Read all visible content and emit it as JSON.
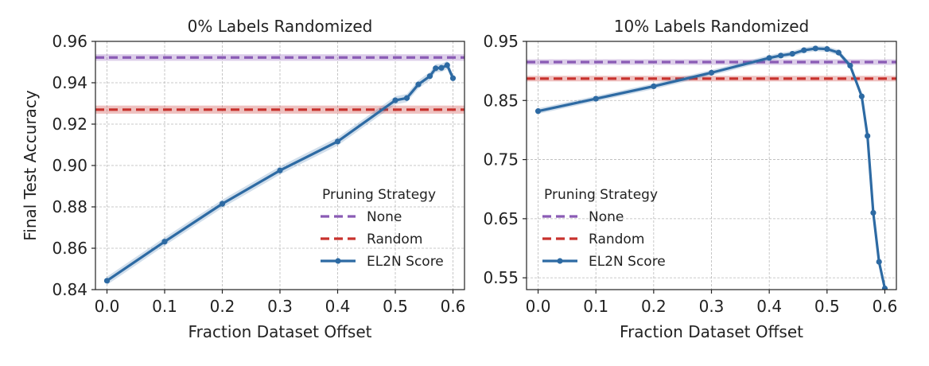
{
  "chart_data": [
    {
      "type": "line",
      "title": "0% Labels Randomized",
      "xlabel": "Fraction Dataset Offset",
      "ylabel": "Final Test Accuracy",
      "xlim": [
        -0.02,
        0.62
      ],
      "ylim": [
        0.84,
        0.96
      ],
      "xticks": [
        0.0,
        0.1,
        0.2,
        0.3,
        0.4,
        0.5,
        0.6
      ],
      "xtick_labels": [
        "0.0",
        "0.1",
        "0.2",
        "0.3",
        "0.4",
        "0.5",
        "0.6"
      ],
      "yticks": [
        0.84,
        0.86,
        0.88,
        0.9,
        0.92,
        0.94,
        0.96
      ],
      "ytick_labels": [
        "0.84",
        "0.86",
        "0.88",
        "0.90",
        "0.92",
        "0.94",
        "0.96"
      ],
      "grid": true,
      "legend": {
        "title": "Pruning Strategy",
        "position": "lower-right",
        "entries": [
          "None",
          "Random",
          "EL2N Score"
        ]
      },
      "hlines": [
        {
          "name": "None",
          "y": 0.9522,
          "band": 0.0008,
          "color": "#8a5bb5",
          "style": "dashed"
        },
        {
          "name": "Random",
          "y": 0.927,
          "band": 0.0012,
          "color": "#c8322d",
          "style": "dashed"
        }
      ],
      "series": [
        {
          "name": "EL2N Score",
          "color": "#2d6aa3",
          "band": 0.0012,
          "x": [
            0.0,
            0.1,
            0.2,
            0.3,
            0.4,
            0.5,
            0.52,
            0.54,
            0.56,
            0.57,
            0.58,
            0.59,
            0.6
          ],
          "y": [
            0.8443,
            0.8632,
            0.8815,
            0.8976,
            0.9116,
            0.9315,
            0.9326,
            0.9392,
            0.9432,
            0.947,
            0.9472,
            0.9485,
            0.9422
          ]
        }
      ]
    },
    {
      "type": "line",
      "title": "10% Labels Randomized",
      "xlabel": "Fraction Dataset Offset",
      "ylabel": "",
      "xlim": [
        -0.02,
        0.62
      ],
      "ylim": [
        0.53,
        0.95
      ],
      "xticks": [
        0.0,
        0.1,
        0.2,
        0.3,
        0.4,
        0.5,
        0.6
      ],
      "xtick_labels": [
        "0.0",
        "0.1",
        "0.2",
        "0.3",
        "0.4",
        "0.5",
        "0.6"
      ],
      "yticks": [
        0.55,
        0.65,
        0.75,
        0.85,
        0.95
      ],
      "ytick_labels": [
        "0.55",
        "0.65",
        "0.75",
        "0.85",
        "0.95"
      ],
      "grid": true,
      "legend": {
        "title": "Pruning Strategy",
        "position": "lower-left",
        "entries": [
          "None",
          "Random",
          "EL2N Score"
        ]
      },
      "hlines": [
        {
          "name": "None",
          "y": 0.915,
          "band": 0.002,
          "color": "#8a5bb5",
          "style": "dashed"
        },
        {
          "name": "Random",
          "y": 0.887,
          "band": 0.002,
          "color": "#c8322d",
          "style": "dashed"
        }
      ],
      "series": [
        {
          "name": "EL2N Score",
          "color": "#2d6aa3",
          "band": 0.002,
          "x": [
            0.0,
            0.1,
            0.2,
            0.3,
            0.4,
            0.42,
            0.44,
            0.46,
            0.48,
            0.5,
            0.52,
            0.54,
            0.56,
            0.57,
            0.58,
            0.59,
            0.6
          ],
          "y": [
            0.832,
            0.853,
            0.874,
            0.897,
            0.922,
            0.926,
            0.929,
            0.935,
            0.938,
            0.937,
            0.931,
            0.909,
            0.857,
            0.79,
            0.66,
            0.577,
            0.532
          ]
        }
      ]
    }
  ]
}
